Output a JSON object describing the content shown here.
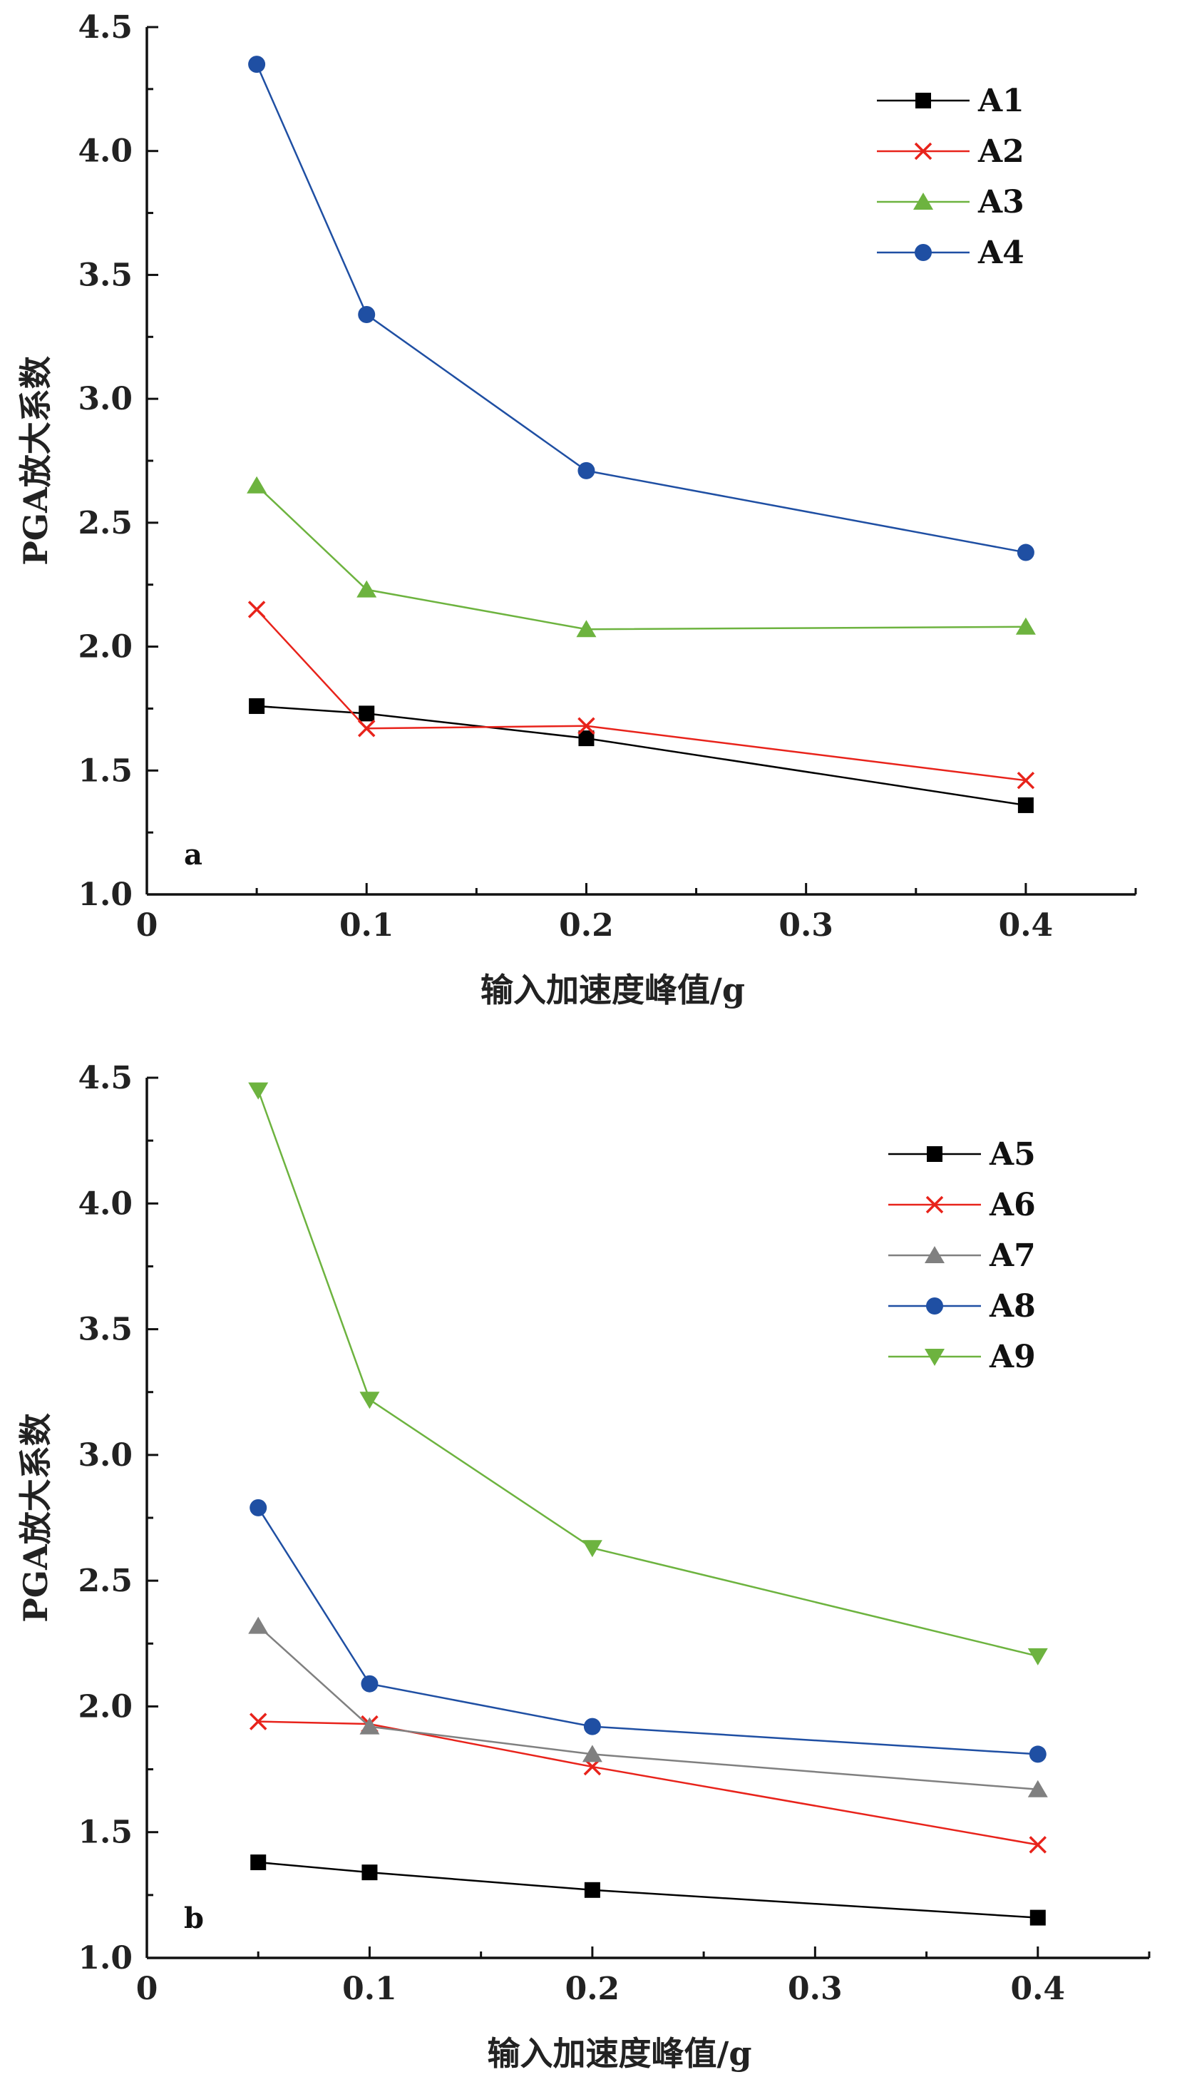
{
  "chart_data": [
    {
      "type": "line",
      "panel_label": "a",
      "xlabel": "输入加速度峰值/g",
      "ylabel": "PGA放大系数",
      "xlim": [
        0,
        0.45
      ],
      "ylim": [
        1.0,
        4.5
      ],
      "xticks": [
        0,
        0.1,
        0.2,
        0.3,
        0.4
      ],
      "xtick_labels": [
        "0",
        "0.1",
        "0.2",
        "0.3",
        "0.4"
      ],
      "yticks": [
        1.0,
        1.5,
        2.0,
        2.5,
        3.0,
        3.5,
        4.0,
        4.5
      ],
      "ytick_labels": [
        "1.0",
        "1.5",
        "2.0",
        "2.5",
        "3.0",
        "3.5",
        "4.0",
        "4.5"
      ],
      "grid": false,
      "legend_position": "top-right",
      "x": [
        0.05,
        0.1,
        0.2,
        0.4
      ],
      "series": [
        {
          "name": "A1",
          "marker": "square",
          "color": "#000000",
          "values": [
            1.76,
            1.73,
            1.63,
            1.36
          ]
        },
        {
          "name": "A2",
          "marker": "x",
          "color": "#e8231b",
          "values": [
            2.15,
            1.67,
            1.68,
            1.46
          ]
        },
        {
          "name": "A3",
          "marker": "triangle-up",
          "color": "#6db33f",
          "values": [
            2.65,
            2.23,
            2.07,
            2.08
          ]
        },
        {
          "name": "A4",
          "marker": "circle",
          "color": "#1f4fa3",
          "values": [
            4.35,
            3.34,
            2.71,
            2.38
          ]
        }
      ]
    },
    {
      "type": "line",
      "panel_label": "b",
      "xlabel": "输入加速度峰值/g",
      "ylabel": "PGA放大系数",
      "xlim": [
        0,
        0.45
      ],
      "ylim": [
        1.0,
        4.5
      ],
      "xticks": [
        0,
        0.1,
        0.2,
        0.3,
        0.4
      ],
      "xtick_labels": [
        "0",
        "0.1",
        "0.2",
        "0.3",
        "0.4"
      ],
      "yticks": [
        1.0,
        1.5,
        2.0,
        2.5,
        3.0,
        3.5,
        4.0,
        4.5
      ],
      "ytick_labels": [
        "1.0",
        "1.5",
        "2.0",
        "2.5",
        "3.0",
        "3.5",
        "4.0",
        "4.5"
      ],
      "grid": false,
      "legend_position": "top-right",
      "x": [
        0.05,
        0.1,
        0.2,
        0.4
      ],
      "series": [
        {
          "name": "A5",
          "marker": "square",
          "color": "#000000",
          "values": [
            1.38,
            1.34,
            1.27,
            1.16
          ]
        },
        {
          "name": "A6",
          "marker": "x",
          "color": "#e8231b",
          "values": [
            1.94,
            1.93,
            1.76,
            1.45
          ]
        },
        {
          "name": "A7",
          "marker": "triangle-up",
          "color": "#808080",
          "values": [
            2.32,
            1.92,
            1.81,
            1.67
          ]
        },
        {
          "name": "A8",
          "marker": "circle",
          "color": "#1f4fa3",
          "values": [
            2.79,
            2.09,
            1.92,
            1.81
          ]
        },
        {
          "name": "A9",
          "marker": "triangle-down",
          "color": "#6db33f",
          "values": [
            4.45,
            3.22,
            2.63,
            2.2
          ]
        }
      ]
    }
  ]
}
